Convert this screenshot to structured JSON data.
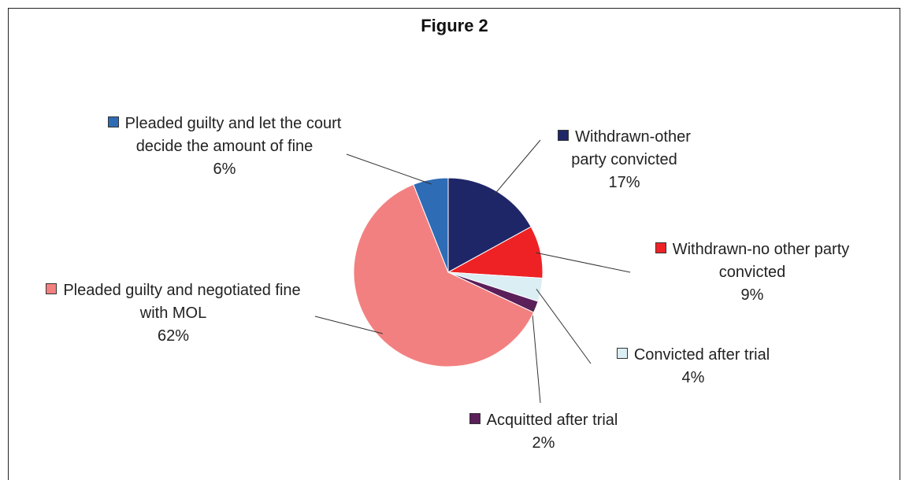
{
  "chart_data": {
    "type": "pie",
    "title": "Figure 2",
    "categories": [
      "Withdrawn-other party convicted",
      "Withdrawn-no other party convicted",
      "Convicted after trial",
      "Acquitted after trial",
      "Pleaded guilty and negotiated fine with MOL",
      "Pleaded guilty and let the court decide the amount of fine"
    ],
    "values": [
      17,
      9,
      4,
      2,
      62,
      6
    ],
    "value_labels": [
      "17%",
      "9%",
      "4%",
      "2%",
      "62%",
      "6%"
    ],
    "colors": [
      "#1f2668",
      "#ee2225",
      "#daeef3",
      "#5b1f5a",
      "#f38080",
      "#2e6cb5"
    ]
  }
}
